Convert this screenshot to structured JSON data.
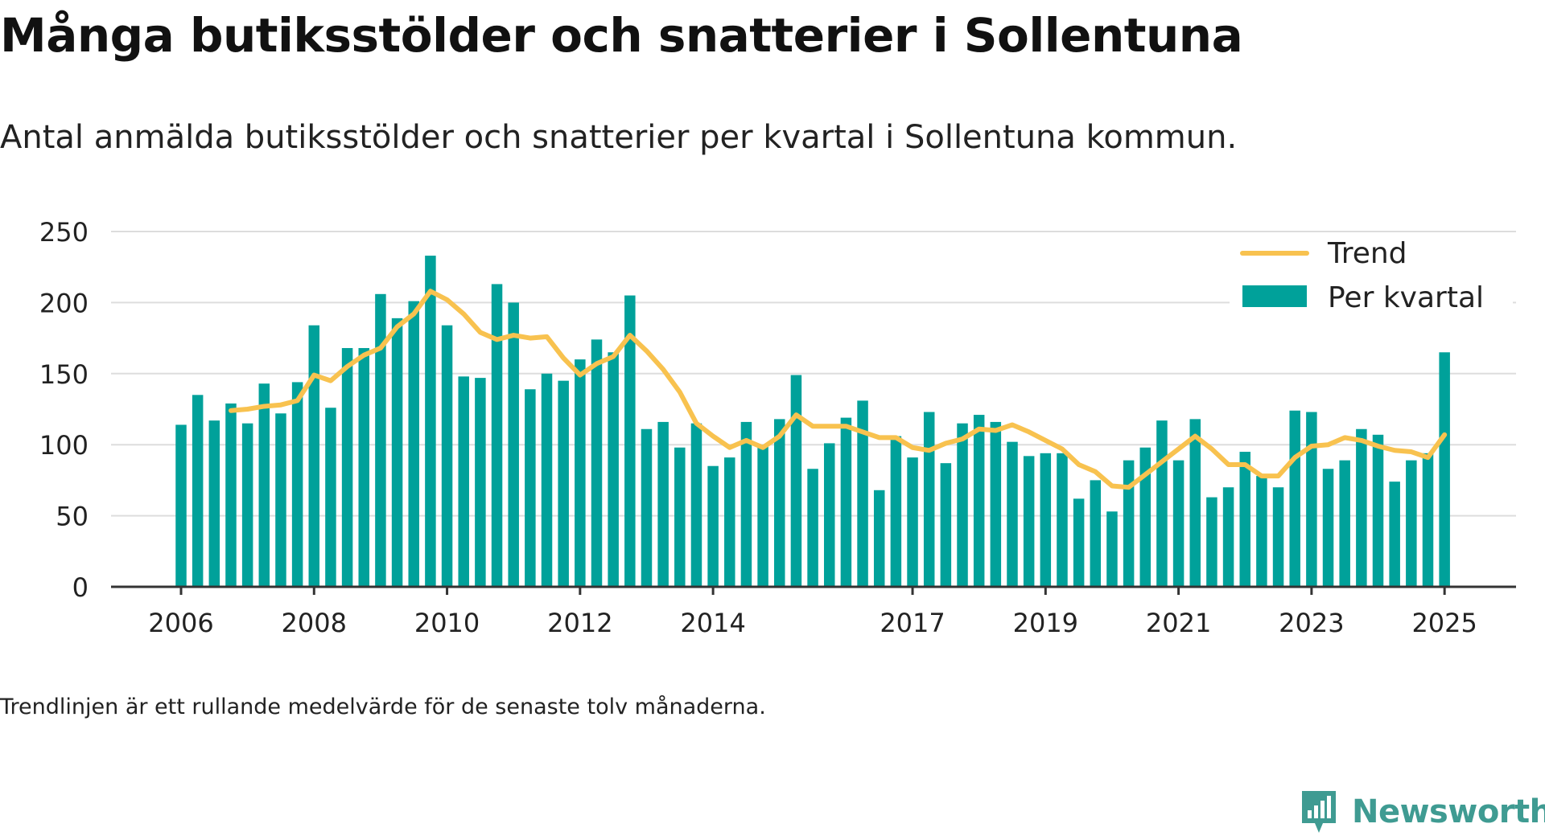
{
  "title": "Många butiksstölder och snatterier i Sollentuna",
  "subtitle": "Antal anmälda butiksstölder och snatterier per kvartal i Sollentuna kommun.",
  "footnote": "Trendlinjen är ett rullande medelvärde för de senaste tolv månaderna.",
  "brand": {
    "name": "Newsworthy",
    "icon": "bar-chart-speech-bubble-icon"
  },
  "colors": {
    "bars": "#00a19a",
    "trend": "#f8c24f",
    "grid": "#dddddd",
    "axis": "#333333",
    "brand": "#3f9b92"
  },
  "chart_data": {
    "type": "bar",
    "x_unit": "quarter",
    "ylim": [
      0,
      250
    ],
    "y_ticks": [
      0,
      50,
      100,
      150,
      200,
      250
    ],
    "grid": true,
    "legend_position": "top-right",
    "x_tick_labels": [
      {
        "label": "2006",
        "quarter": "2006Q1"
      },
      {
        "label": "2008",
        "quarter": "2008Q1"
      },
      {
        "label": "2010",
        "quarter": "2010Q1"
      },
      {
        "label": "2012",
        "quarter": "2012Q1"
      },
      {
        "label": "2014",
        "quarter": "2014Q1"
      },
      {
        "label": "2017",
        "quarter": "2017Q1"
      },
      {
        "label": "2019",
        "quarter": "2019Q1"
      },
      {
        "label": "2021",
        "quarter": "2021Q1"
      },
      {
        "label": "2023",
        "quarter": "2023Q1"
      },
      {
        "label": "2025",
        "quarter": "2025Q1"
      }
    ],
    "categories": [
      "2006Q1",
      "2006Q2",
      "2006Q3",
      "2006Q4",
      "2007Q1",
      "2007Q2",
      "2007Q3",
      "2007Q4",
      "2008Q1",
      "2008Q2",
      "2008Q3",
      "2008Q4",
      "2009Q1",
      "2009Q2",
      "2009Q3",
      "2009Q4",
      "2010Q1",
      "2010Q2",
      "2010Q3",
      "2010Q4",
      "2011Q1",
      "2011Q2",
      "2011Q3",
      "2011Q4",
      "2012Q1",
      "2012Q2",
      "2012Q3",
      "2012Q4",
      "2013Q1",
      "2013Q2",
      "2013Q3",
      "2013Q4",
      "2014Q1",
      "2014Q2",
      "2014Q3",
      "2014Q4",
      "2015Q1",
      "2015Q2",
      "2015Q3",
      "2015Q4",
      "2016Q1",
      "2016Q2",
      "2016Q3",
      "2016Q4",
      "2017Q1",
      "2017Q2",
      "2017Q3",
      "2017Q4",
      "2018Q1",
      "2018Q2",
      "2018Q3",
      "2018Q4",
      "2019Q1",
      "2019Q2",
      "2019Q3",
      "2019Q4",
      "2020Q1",
      "2020Q2",
      "2020Q3",
      "2020Q4",
      "2021Q1",
      "2021Q2",
      "2021Q3",
      "2021Q4",
      "2022Q1",
      "2022Q2",
      "2022Q3",
      "2022Q4",
      "2023Q1",
      "2023Q2",
      "2023Q3",
      "2023Q4",
      "2024Q1",
      "2024Q2",
      "2024Q3",
      "2024Q4",
      "2025Q1"
    ],
    "series": [
      {
        "name": "Per kvartal",
        "type": "bar",
        "values": [
          114,
          135,
          117,
          129,
          115,
          143,
          122,
          144,
          184,
          126,
          168,
          168,
          206,
          189,
          201,
          233,
          184,
          148,
          147,
          213,
          200,
          139,
          150,
          145,
          160,
          174,
          165,
          205,
          111,
          116,
          98,
          115,
          85,
          91,
          116,
          100,
          118,
          149,
          83,
          101,
          119,
          131,
          68,
          106,
          91,
          123,
          87,
          115,
          121,
          116,
          102,
          92,
          94,
          94,
          62,
          75,
          53,
          89,
          98,
          117,
          89,
          118,
          63,
          70,
          95,
          78,
          70,
          124,
          123,
          83,
          89,
          111,
          107,
          74,
          89,
          94,
          165
        ]
      },
      {
        "name": "Trend",
        "type": "line",
        "values": [
          null,
          null,
          null,
          124,
          125,
          127,
          128,
          131,
          149,
          145,
          155,
          163,
          168,
          183,
          192,
          208,
          202,
          192,
          179,
          174,
          177,
          175,
          176,
          161,
          149,
          157,
          162,
          177,
          166,
          153,
          137,
          115,
          106,
          98,
          103,
          98,
          106,
          121,
          113,
          113,
          113,
          109,
          105,
          105,
          98,
          96,
          101,
          104,
          111,
          110,
          114,
          109,
          103,
          97,
          86,
          81,
          71,
          70,
          79,
          88,
          97,
          106,
          97,
          86,
          86,
          78,
          78,
          91,
          99,
          100,
          105,
          103,
          99,
          96,
          95,
          91,
          107
        ]
      }
    ]
  }
}
